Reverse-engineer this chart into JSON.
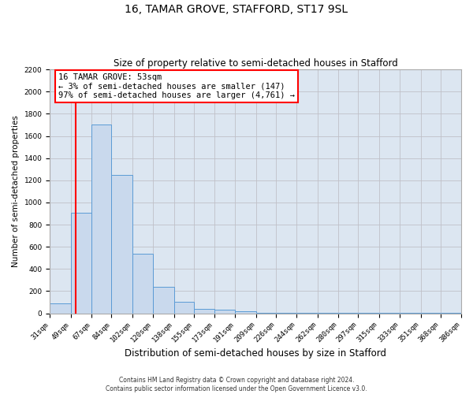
{
  "title": "16, TAMAR GROVE, STAFFORD, ST17 9SL",
  "subtitle": "Size of property relative to semi-detached houses in Stafford",
  "xlabel": "Distribution of semi-detached houses by size in Stafford",
  "ylabel": "Number of semi-detached properties",
  "footer_line1": "Contains HM Land Registry data © Crown copyright and database right 2024.",
  "footer_line2": "Contains public sector information licensed under the Open Government Licence v3.0.",
  "bin_edges": [
    31,
    49,
    67,
    84,
    102,
    120,
    138,
    155,
    173,
    191,
    209,
    226,
    244,
    262,
    280,
    297,
    315,
    333,
    351,
    368,
    386
  ],
  "bar_heights": [
    90,
    910,
    1700,
    1250,
    540,
    240,
    100,
    40,
    30,
    20,
    5,
    5,
    5,
    3,
    2,
    2,
    2,
    2,
    2,
    2
  ],
  "bar_color": "#c9d9ed",
  "bar_edgecolor": "#5b9bd5",
  "property_line_x": 53,
  "property_line_color": "red",
  "annotation_title": "16 TAMAR GROVE: 53sqm",
  "annotation_line2": "← 3% of semi-detached houses are smaller (147)",
  "annotation_line3": "97% of semi-detached houses are larger (4,761) →",
  "ylim": [
    0,
    2200
  ],
  "yticks": [
    0,
    200,
    400,
    600,
    800,
    1000,
    1200,
    1400,
    1600,
    1800,
    2000,
    2200
  ],
  "grid_color": "#c0c0c8",
  "bg_color": "#dce6f1",
  "title_fontsize": 10,
  "subtitle_fontsize": 8.5,
  "tick_label_fontsize": 6.5,
  "ylabel_fontsize": 7.5,
  "xlabel_fontsize": 8.5,
  "annotation_fontsize": 7.5,
  "footer_fontsize": 5.5
}
